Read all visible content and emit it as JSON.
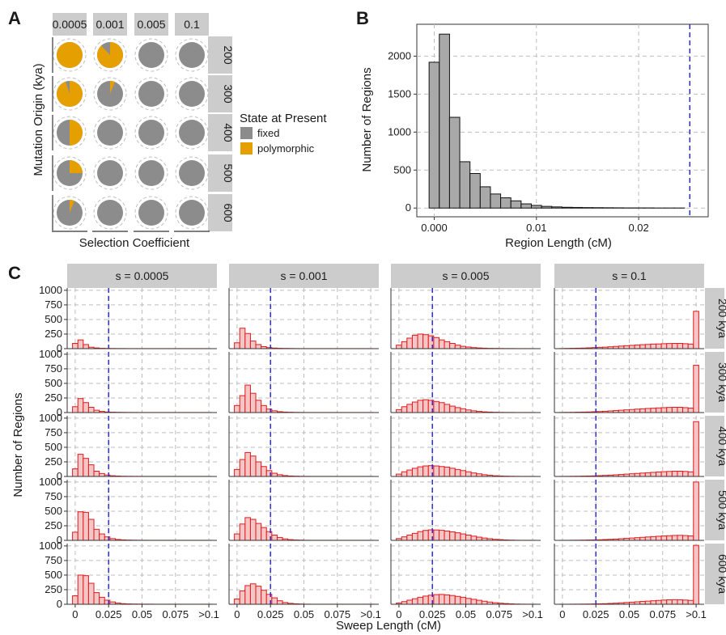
{
  "chart_data": [
    {
      "panel": "A",
      "type": "pie",
      "columns": [
        "0.0005",
        "0.001",
        "0.005",
        "0.1"
      ],
      "rows": [
        "200",
        "300",
        "400",
        "500",
        "600"
      ],
      "xlabel": "Selection Coefficient",
      "ylabel": "Mutation Origin (kya)",
      "legend": {
        "title": "State at Present",
        "items": [
          {
            "label": "fixed",
            "color": "#8c8c8c"
          },
          {
            "label": "polymorphic",
            "color": "#e69f00"
          }
        ]
      },
      "polymorphic_fraction": [
        [
          1.0,
          0.88,
          0.0,
          0.0
        ],
        [
          0.95,
          0.06,
          0.0,
          0.0
        ],
        [
          0.5,
          0.0,
          0.0,
          0.0
        ],
        [
          0.25,
          0.0,
          0.0,
          0.0
        ],
        [
          0.06,
          0.0,
          0.0,
          0.0
        ]
      ]
    },
    {
      "panel": "B",
      "type": "bar",
      "xlabel": "Region Length (cM)",
      "ylabel": "Number of Regions",
      "xlim": [
        -0.0017,
        0.0268
      ],
      "ylim": [
        -115,
        2420
      ],
      "xticks": [
        0.0,
        0.01,
        0.02
      ],
      "xtick_labels": [
        "0.000",
        "0.01",
        "0.02"
      ],
      "yticks": [
        0,
        500,
        1000,
        1500,
        2000
      ],
      "bin_width": 0.001,
      "bin_centers": [
        0.0,
        0.001,
        0.002,
        0.003,
        0.004,
        0.005,
        0.006,
        0.007,
        0.008,
        0.009,
        0.01,
        0.011,
        0.012,
        0.013,
        0.014,
        0.015,
        0.016,
        0.017,
        0.018,
        0.019,
        0.02,
        0.021,
        0.022,
        0.023,
        0.024
      ],
      "values": [
        1920,
        2290,
        1195,
        610,
        455,
        280,
        185,
        135,
        95,
        55,
        35,
        22,
        15,
        10,
        8,
        6,
        5,
        4,
        3,
        2,
        2,
        2,
        1,
        1,
        1
      ],
      "vline": 0.025,
      "bar_color": "#a9a9a9",
      "vline_color": "#1f1fe0"
    },
    {
      "panel": "C",
      "type": "bar",
      "xlabel": "Sweep Length (cM)",
      "ylabel": "Number of Regions",
      "columns": [
        "s = 0.0005",
        "s = 0.001",
        "s = 0.005",
        "s = 0.1"
      ],
      "rows": [
        "200 kya",
        "300 kya",
        "400 kya",
        "500 kya",
        "600 kya"
      ],
      "xlim": [
        -0.006,
        0.106
      ],
      "ylim": [
        0,
        1040
      ],
      "xticks": [
        0,
        0.025,
        0.05,
        0.075,
        0.1
      ],
      "xtick_labels": [
        "0",
        "0.025",
        "0.05",
        "0.075",
        ">0.1"
      ],
      "yticks": [
        0,
        250,
        500,
        750,
        1000
      ],
      "bin_width": 0.004,
      "vline": 0.025,
      "bar_fill": "#f4c6c6",
      "bar_stroke": "#e31a1c",
      "vline_color": "#1f1fe0",
      "histograms": [
        [
          [
            90,
            150,
            70,
            25,
            12,
            6,
            4,
            3,
            2,
            2,
            1,
            1,
            1,
            1,
            1,
            1,
            1,
            1,
            1,
            1,
            1,
            1,
            1,
            1,
            1,
            1
          ],
          [
            100,
            240,
            170,
            90,
            40,
            20,
            10,
            6,
            4,
            3,
            2,
            2,
            1,
            1,
            1,
            1,
            1,
            1,
            1,
            1,
            1,
            1,
            1,
            1,
            1,
            1
          ],
          [
            130,
            380,
            310,
            200,
            90,
            50,
            25,
            12,
            7,
            4,
            3,
            2,
            2,
            1,
            1,
            1,
            1,
            1,
            1,
            1,
            1,
            1,
            1,
            1,
            1,
            1
          ],
          [
            140,
            490,
            480,
            360,
            190,
            110,
            60,
            30,
            15,
            8,
            5,
            3,
            2,
            2,
            1,
            1,
            1,
            1,
            1,
            1,
            1,
            1,
            1,
            1,
            1,
            1
          ],
          [
            145,
            500,
            490,
            360,
            200,
            120,
            70,
            40,
            20,
            10,
            6,
            4,
            3,
            2,
            2,
            1,
            1,
            1,
            1,
            1,
            1,
            1,
            1,
            1,
            1,
            1
          ]
        ],
        [
          [
            100,
            350,
            260,
            130,
            70,
            35,
            18,
            10,
            6,
            4,
            3,
            2,
            1,
            1,
            1,
            1,
            1,
            1,
            1,
            1,
            1,
            1,
            1,
            1,
            1,
            1
          ],
          [
            120,
            290,
            470,
            330,
            210,
            120,
            60,
            30,
            15,
            8,
            5,
            3,
            2,
            1,
            1,
            1,
            1,
            1,
            1,
            1,
            1,
            1,
            1,
            1,
            1,
            1
          ],
          [
            120,
            290,
            410,
            350,
            250,
            170,
            100,
            55,
            30,
            15,
            8,
            5,
            3,
            2,
            1,
            1,
            1,
            1,
            1,
            1,
            1,
            1,
            1,
            1,
            1,
            1
          ],
          [
            110,
            280,
            390,
            360,
            290,
            220,
            150,
            90,
            50,
            25,
            12,
            6,
            4,
            2,
            1,
            1,
            1,
            1,
            1,
            1,
            1,
            1,
            1,
            1,
            1,
            1
          ],
          [
            90,
            230,
            320,
            350,
            310,
            240,
            170,
            110,
            60,
            30,
            15,
            8,
            4,
            2,
            1,
            1,
            1,
            1,
            1,
            1,
            1,
            1,
            1,
            1,
            1,
            1
          ]
        ],
        [
          [
            60,
            120,
            180,
            230,
            250,
            240,
            220,
            190,
            150,
            120,
            90,
            60,
            40,
            28,
            18,
            12,
            8,
            5,
            4,
            3,
            2,
            2,
            1,
            1,
            1,
            1
          ],
          [
            50,
            100,
            140,
            180,
            210,
            220,
            210,
            190,
            170,
            140,
            110,
            85,
            65,
            45,
            30,
            20,
            12,
            8,
            5,
            3,
            2,
            2,
            1,
            1,
            1,
            1
          ],
          [
            40,
            80,
            110,
            140,
            165,
            180,
            185,
            180,
            170,
            160,
            140,
            120,
            100,
            80,
            60,
            45,
            30,
            20,
            12,
            8,
            5,
            3,
            2,
            1,
            1,
            1
          ],
          [
            30,
            60,
            90,
            120,
            150,
            170,
            180,
            178,
            172,
            160,
            145,
            130,
            110,
            90,
            72,
            55,
            40,
            28,
            18,
            12,
            7,
            4,
            2,
            1,
            1,
            1
          ],
          [
            20,
            45,
            70,
            95,
            120,
            140,
            155,
            165,
            168,
            160,
            150,
            135,
            120,
            100,
            85,
            68,
            52,
            38,
            26,
            18,
            12,
            7,
            4,
            2,
            1,
            1
          ]
        ],
        [
          [
            2,
            4,
            6,
            8,
            10,
            14,
            18,
            22,
            26,
            32,
            38,
            44,
            50,
            56,
            62,
            68,
            72,
            78,
            80,
            85,
            88,
            90,
            90,
            85,
            78,
            640
          ],
          [
            2,
            3,
            4,
            6,
            8,
            10,
            14,
            18,
            22,
            28,
            34,
            40,
            46,
            52,
            58,
            64,
            70,
            74,
            80,
            84,
            88,
            90,
            90,
            84,
            76,
            810
          ],
          [
            1,
            2,
            3,
            4,
            6,
            8,
            10,
            14,
            18,
            22,
            28,
            34,
            40,
            46,
            52,
            58,
            64,
            70,
            76,
            82,
            86,
            90,
            90,
            86,
            78,
            940
          ],
          [
            1,
            1,
            2,
            3,
            4,
            6,
            8,
            10,
            14,
            18,
            22,
            28,
            34,
            40,
            46,
            52,
            58,
            64,
            70,
            76,
            80,
            84,
            86,
            82,
            76,
            1000
          ],
          [
            1,
            1,
            2,
            2,
            3,
            4,
            6,
            8,
            10,
            14,
            18,
            24,
            30,
            36,
            42,
            48,
            54,
            60,
            66,
            72,
            76,
            78,
            76,
            72,
            66,
            1010
          ]
        ]
      ]
    }
  ]
}
